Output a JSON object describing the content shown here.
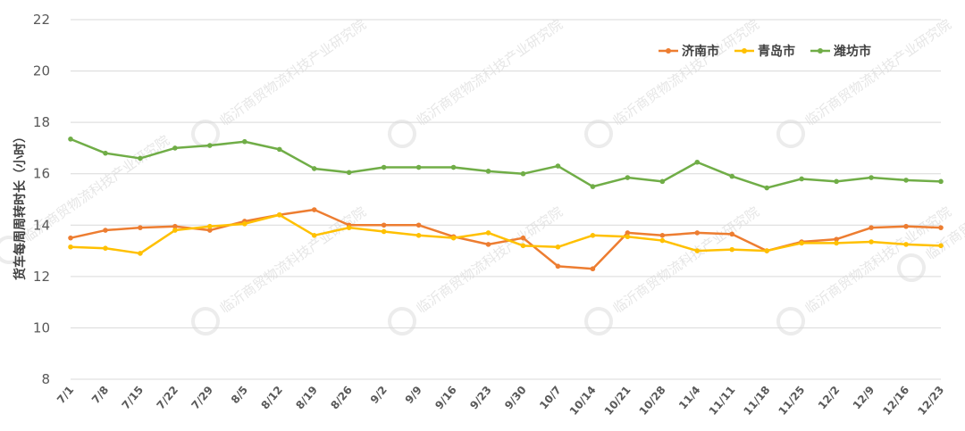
{
  "chart_data": {
    "type": "line",
    "ylabel": "货车每周周转时长（小时）",
    "ylim": [
      8,
      22
    ],
    "yticks": [
      8,
      10,
      12,
      14,
      16,
      18,
      20,
      22
    ],
    "grid": true,
    "legend_position": "top-right",
    "watermark": "临沂商贸物流科技产业研究院",
    "categories": [
      "7/1",
      "7/8",
      "7/15",
      "7/22",
      "7/29",
      "8/5",
      "8/12",
      "8/19",
      "8/26",
      "9/2",
      "9/9",
      "9/16",
      "9/23",
      "9/30",
      "10/7",
      "10/14",
      "10/21",
      "10/28",
      "11/4",
      "11/11",
      "11/18",
      "11/25",
      "12/2",
      "12/9",
      "12/16",
      "12/23"
    ],
    "series": [
      {
        "name": "济南市",
        "color": "#ED7D31",
        "values": [
          13.5,
          13.8,
          13.9,
          13.95,
          13.8,
          14.15,
          14.4,
          14.6,
          14.0,
          14.0,
          14.0,
          13.55,
          13.25,
          13.5,
          12.4,
          12.3,
          13.7,
          13.6,
          13.7,
          13.65,
          13.0,
          13.35,
          13.45,
          13.9,
          13.95,
          13.9
        ]
      },
      {
        "name": "青岛市",
        "color": "#FFC000",
        "values": [
          13.15,
          13.1,
          12.9,
          13.8,
          13.95,
          14.05,
          14.4,
          13.6,
          13.9,
          13.75,
          13.6,
          13.5,
          13.7,
          13.2,
          13.15,
          13.6,
          13.55,
          13.4,
          13.0,
          13.05,
          13.0,
          13.3,
          13.3,
          13.35,
          13.25,
          13.2
        ]
      },
      {
        "name": "潍坊市",
        "color": "#70AD47",
        "values": [
          17.35,
          16.8,
          16.6,
          17.0,
          17.1,
          17.25,
          16.95,
          16.2,
          16.05,
          16.25,
          16.25,
          16.25,
          16.1,
          16.0,
          16.3,
          15.5,
          15.85,
          15.7,
          16.45,
          15.9,
          15.45,
          15.8,
          15.7,
          15.85,
          15.75,
          15.7
        ]
      }
    ]
  }
}
